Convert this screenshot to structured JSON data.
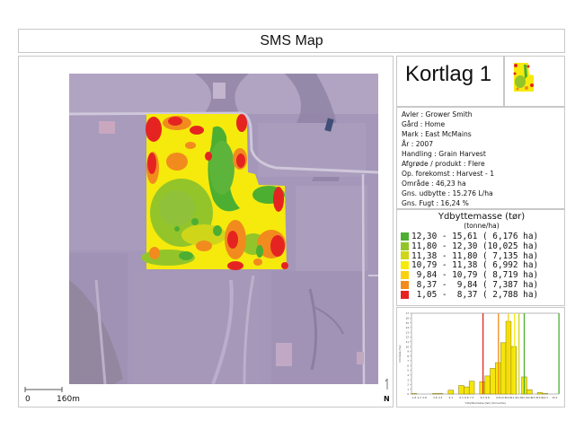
{
  "title": "SMS Map",
  "layer": {
    "title": "Kortlag 1"
  },
  "info": [
    {
      "label": "Avler",
      "value": "Grower Smith"
    },
    {
      "label": "Gård ",
      "value": "Home"
    },
    {
      "label": "Mark ",
      "value": "East McMains"
    },
    {
      "label": "År",
      "value": "2007"
    },
    {
      "label": "Handling ",
      "value": "Grain Harvest"
    },
    {
      "label": "Afgrøde / produkt",
      "value": "Flere"
    },
    {
      "label": "Op. forekomst",
      "value": "Harvest - 1"
    },
    {
      "label": "Område",
      "value": "46,23 ha"
    },
    {
      "label": "Gns. udbytte",
      "value": "15.276 L/ha"
    },
    {
      "label": "Gns. Fugt",
      "value": "16,24 %"
    }
  ],
  "info_lines": [
    "Avler : Grower Smith",
    "Gård  : Home",
    "Mark  : East McMains",
    "År : 2007",
    "Handling  : Grain Harvest",
    "Afgrøde / produkt : Flere",
    "Op. forekomst : Harvest - 1",
    "Område : 46,23 ha",
    "Gns. udbytte : 15.276 L/ha",
    "Gns. Fugt : 16,24 %"
  ],
  "legend": {
    "title": "Ydbyttemasse (tør)",
    "unit": "(tonne/ha)",
    "items": [
      {
        "range": "12,30 - 15,61",
        "area": "( 6,176 ha)",
        "color": "#4caf32",
        "text": "12,30 - 15,61 ( 6,176 ha)"
      },
      {
        "range": "11,80 - 12,30",
        "area": "(10,025 ha)",
        "color": "#93c52a",
        "text": "11,80 - 12,30 (10,025 ha)"
      },
      {
        "range": "11,38 - 11,80",
        "area": "( 7,135 ha)",
        "color": "#cfd61a",
        "text": "11,38 - 11,80 ( 7,135 ha)"
      },
      {
        "range": "10,79 - 11,38",
        "area": "( 6,992 ha)",
        "color": "#f5ea0c",
        "text": "10,79 - 11,38 ( 6,992 ha)"
      },
      {
        "range": "9,84 - 10,79",
        "area": "( 8,719 ha)",
        "color": "#f9d10f",
        "text": " 9,84 - 10,79 ( 8,719 ha)"
      },
      {
        "range": "8,37 - 9,84",
        "area": "( 7,387 ha)",
        "color": "#f28b1e",
        "text": " 8,37 -  9,84 ( 7,387 ha)"
      },
      {
        "range": "1,05 - 8,37",
        "area": "( 2,788 ha)",
        "color": "#e52421",
        "text": " 1,05 -  8,37 ( 2,788 ha)"
      }
    ]
  },
  "scale_bar": {
    "start": "0",
    "end": "160m"
  },
  "north_arrow": {
    "label": "N"
  },
  "chart_data": {
    "type": "bar",
    "title": "",
    "xlabel": "Ydbyttemasse (tør) (tonne/ha)",
    "ylabel": "Område (ha)",
    "ylim": [
      0,
      17
    ],
    "yticks": [
      0,
      1,
      2,
      3,
      4,
      5,
      6,
      7,
      8,
      9,
      10,
      11,
      12,
      13,
      14,
      15,
      16,
      17
    ],
    "categories": [
      "1.8",
      "2.3",
      "2.8",
      "3.3",
      "3.8",
      "4.3",
      "4.8",
      "5.3",
      "5.8",
      "6.3",
      "6.8",
      "7.3",
      "7.8",
      "8.3",
      "8.8",
      "9.3",
      "9.8",
      "10.3",
      "10.8",
      "11.3",
      "11.8",
      "12.3",
      "12.8",
      "13.3",
      "13.8",
      "14.3",
      "14.8",
      "15.2"
    ],
    "xtick_labels": [
      "1.8",
      "2.3",
      "2.8",
      "3.8",
      "4.3",
      "5.3",
      "6.3",
      "6.8",
      "7.3",
      "8.3",
      "8.8",
      "9.8",
      "10.3",
      "10.8",
      "11.3",
      "11.8",
      "12.3",
      "12.8",
      "13.3",
      "13.8",
      "14.3",
      "15.2"
    ],
    "values": [
      0.1,
      0,
      0,
      0,
      0.1,
      0.1,
      0,
      0.8,
      0,
      1.8,
      1.5,
      2.7,
      0,
      2.6,
      3.8,
      5.4,
      6.6,
      10.8,
      15.3,
      10.0,
      0,
      3.6,
      0.9,
      0,
      0.3,
      0.1,
      0,
      0
    ],
    "bars": [
      {
        "x": 1.8,
        "v": 0.1
      },
      {
        "x": 3.8,
        "v": 0.1
      },
      {
        "x": 4.3,
        "v": 0.1
      },
      {
        "x": 5.3,
        "v": 0.8
      },
      {
        "x": 6.3,
        "v": 1.8
      },
      {
        "x": 6.8,
        "v": 1.5
      },
      {
        "x": 7.3,
        "v": 2.7
      },
      {
        "x": 8.3,
        "v": 2.6
      },
      {
        "x": 8.8,
        "v": 3.8
      },
      {
        "x": 9.3,
        "v": 5.4
      },
      {
        "x": 9.8,
        "v": 6.6
      },
      {
        "x": 10.3,
        "v": 10.8
      },
      {
        "x": 10.8,
        "v": 15.3
      },
      {
        "x": 11.3,
        "v": 10.0
      },
      {
        "x": 12.3,
        "v": 3.6
      },
      {
        "x": 12.8,
        "v": 0.9
      },
      {
        "x": 13.8,
        "v": 0.3
      },
      {
        "x": 14.3,
        "v": 0.1
      }
    ],
    "class_break_lines": [
      {
        "x": 8.37,
        "color": "#e52421"
      },
      {
        "x": 9.84,
        "color": "#f28b1e"
      },
      {
        "x": 10.79,
        "color": "#f9d10f"
      },
      {
        "x": 11.38,
        "color": "#f5ea0c"
      },
      {
        "x": 11.8,
        "color": "#cfd61a"
      },
      {
        "x": 12.3,
        "color": "#4caf32"
      },
      {
        "x": 15.61,
        "color": "#4caf32"
      }
    ],
    "bar_color": "#f5e50a",
    "grid": false
  }
}
